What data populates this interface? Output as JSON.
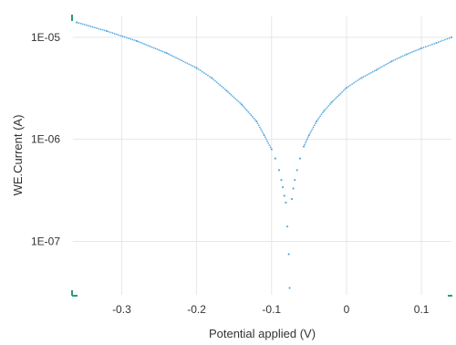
{
  "chart_data": {
    "type": "scatter",
    "title": "",
    "xlabel": "Potential applied (V)",
    "ylabel": "WE.Current (A)",
    "xlim": [
      -0.365,
      0.14
    ],
    "ylim": [
      3e-08,
      1.6e-05
    ],
    "y_scale": "log",
    "x_ticks": [
      {
        "value": -0.3,
        "label": "-0.3"
      },
      {
        "value": -0.2,
        "label": "-0.2"
      },
      {
        "value": -0.1,
        "label": "-0.1"
      },
      {
        "value": 0.0,
        "label": "0"
      },
      {
        "value": 0.1,
        "label": "0.1"
      }
    ],
    "y_ticks": [
      {
        "value": 1e-05,
        "label": "1E-05"
      },
      {
        "value": 1e-06,
        "label": "1E-06"
      },
      {
        "value": 1e-07,
        "label": "1E-07"
      }
    ],
    "grid": true,
    "legend": "none",
    "colors": {
      "series": "#5aa9e0",
      "grid": "#e6e6e6",
      "axis_marker": "#2e9e6e"
    },
    "series": [
      {
        "points": [
          {
            "x": -0.36,
            "y": 1.4e-05
          },
          {
            "x": -0.32,
            "y": 1.15e-05
          },
          {
            "x": -0.28,
            "y": 9.2e-06
          },
          {
            "x": -0.24,
            "y": 7e-06
          },
          {
            "x": -0.2,
            "y": 5e-06
          },
          {
            "x": -0.18,
            "y": 4e-06
          },
          {
            "x": -0.16,
            "y": 3e-06
          },
          {
            "x": -0.14,
            "y": 2.2e-06
          },
          {
            "x": -0.12,
            "y": 1.5e-06
          },
          {
            "x": -0.11,
            "y": 1.1e-06
          },
          {
            "x": -0.1,
            "y": 8e-07
          },
          {
            "x": -0.095,
            "y": 6.5e-07
          },
          {
            "x": -0.09,
            "y": 5e-07
          },
          {
            "x": -0.087,
            "y": 4e-07
          },
          {
            "x": -0.085,
            "y": 3.4e-07
          },
          {
            "x": -0.083,
            "y": 2.8e-07
          },
          {
            "x": -0.081,
            "y": 2.4e-07
          },
          {
            "x": -0.079,
            "y": 1.4e-07
          },
          {
            "x": -0.077,
            "y": 7.5e-08
          },
          {
            "x": -0.076,
            "y": 3.5e-08
          },
          {
            "x": -0.073,
            "y": 2.6e-07
          },
          {
            "x": -0.071,
            "y": 3.3e-07
          },
          {
            "x": -0.069,
            "y": 4e-07
          },
          {
            "x": -0.066,
            "y": 5e-07
          },
          {
            "x": -0.062,
            "y": 6.5e-07
          },
          {
            "x": -0.057,
            "y": 8.5e-07
          },
          {
            "x": -0.05,
            "y": 1.1e-06
          },
          {
            "x": -0.04,
            "y": 1.5e-06
          },
          {
            "x": -0.03,
            "y": 1.9e-06
          },
          {
            "x": -0.02,
            "y": 2.3e-06
          },
          {
            "x": 0.0,
            "y": 3.2e-06
          },
          {
            "x": 0.02,
            "y": 4e-06
          },
          {
            "x": 0.04,
            "y": 4.8e-06
          },
          {
            "x": 0.06,
            "y": 5.8e-06
          },
          {
            "x": 0.08,
            "y": 6.8e-06
          },
          {
            "x": 0.1,
            "y": 7.8e-06
          },
          {
            "x": 0.12,
            "y": 8.8e-06
          },
          {
            "x": 0.14,
            "y": 1e-05
          }
        ]
      }
    ]
  }
}
